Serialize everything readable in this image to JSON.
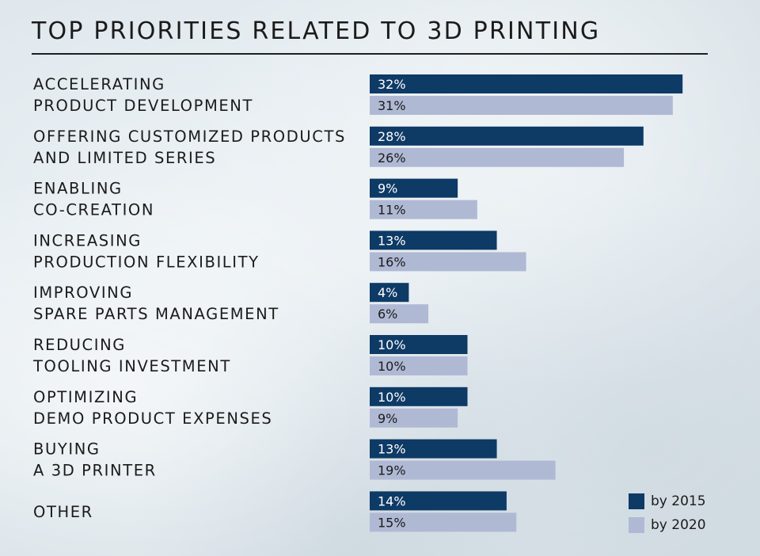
{
  "chart_data": {
    "type": "bar",
    "orientation": "horizontal",
    "title": "TOP PRIORITIES RELATED TO 3D PRINTING",
    "categories": [
      [
        "ACCELERATING",
        "PRODUCT DEVELOPMENT"
      ],
      [
        "OFFERING CUSTOMIZED PRODUCTS",
        "AND LIMITED SERIES"
      ],
      [
        "ENABLING",
        "CO-CREATION"
      ],
      [
        "INCREASING",
        "PRODUCTION FLEXIBILITY"
      ],
      [
        "IMPROVING",
        "SPARE PARTS MANAGEMENT"
      ],
      [
        "REDUCING",
        "TOOLING INVESTMENT"
      ],
      [
        "OPTIMIZING",
        "DEMO PRODUCT EXPENSES"
      ],
      [
        "BUYING",
        "A 3D PRINTER"
      ],
      [
        "OTHER"
      ]
    ],
    "series": [
      {
        "name": "by 2015",
        "color": "#0e3a66",
        "values": [
          32,
          28,
          9,
          13,
          4,
          10,
          10,
          13,
          14
        ],
        "labels": [
          "32%",
          "28%",
          "9%",
          "13%",
          "4%",
          "10%",
          "10%",
          "13%",
          "14%"
        ]
      },
      {
        "name": "by 2020",
        "color": "#b0b9d4",
        "values": [
          31,
          26,
          11,
          16,
          6,
          10,
          9,
          19,
          15
        ],
        "labels": [
          "31%",
          "26%",
          "11%",
          "16%",
          "6%",
          "10%",
          "9%",
          "19%",
          "15%"
        ]
      }
    ],
    "unit": "%",
    "legend_position": "bottom-right",
    "grid": false
  }
}
